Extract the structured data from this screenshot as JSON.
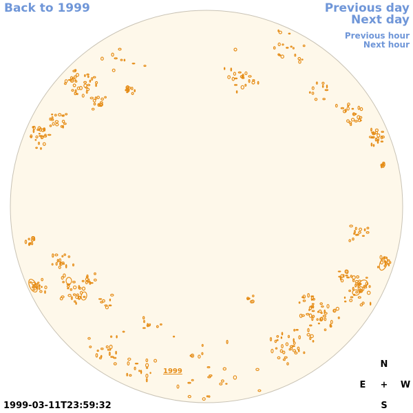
{
  "nav": {
    "back_label": "Back to 1999",
    "prev_day_label": "Previous day",
    "next_day_label": "Next day",
    "prev_hour_label": "Previous hour",
    "next_hour_label": "Next hour"
  },
  "timestamp": "1999-03-11T23:59:32",
  "disk": {
    "year_label": "1999",
    "fill_color": "#fef8ea",
    "edge_color": "#c8c2b4",
    "contour_color": "#e58c16"
  },
  "compass": {
    "north": "N",
    "east": "E",
    "center": "+",
    "west": "W",
    "south": "S"
  }
}
